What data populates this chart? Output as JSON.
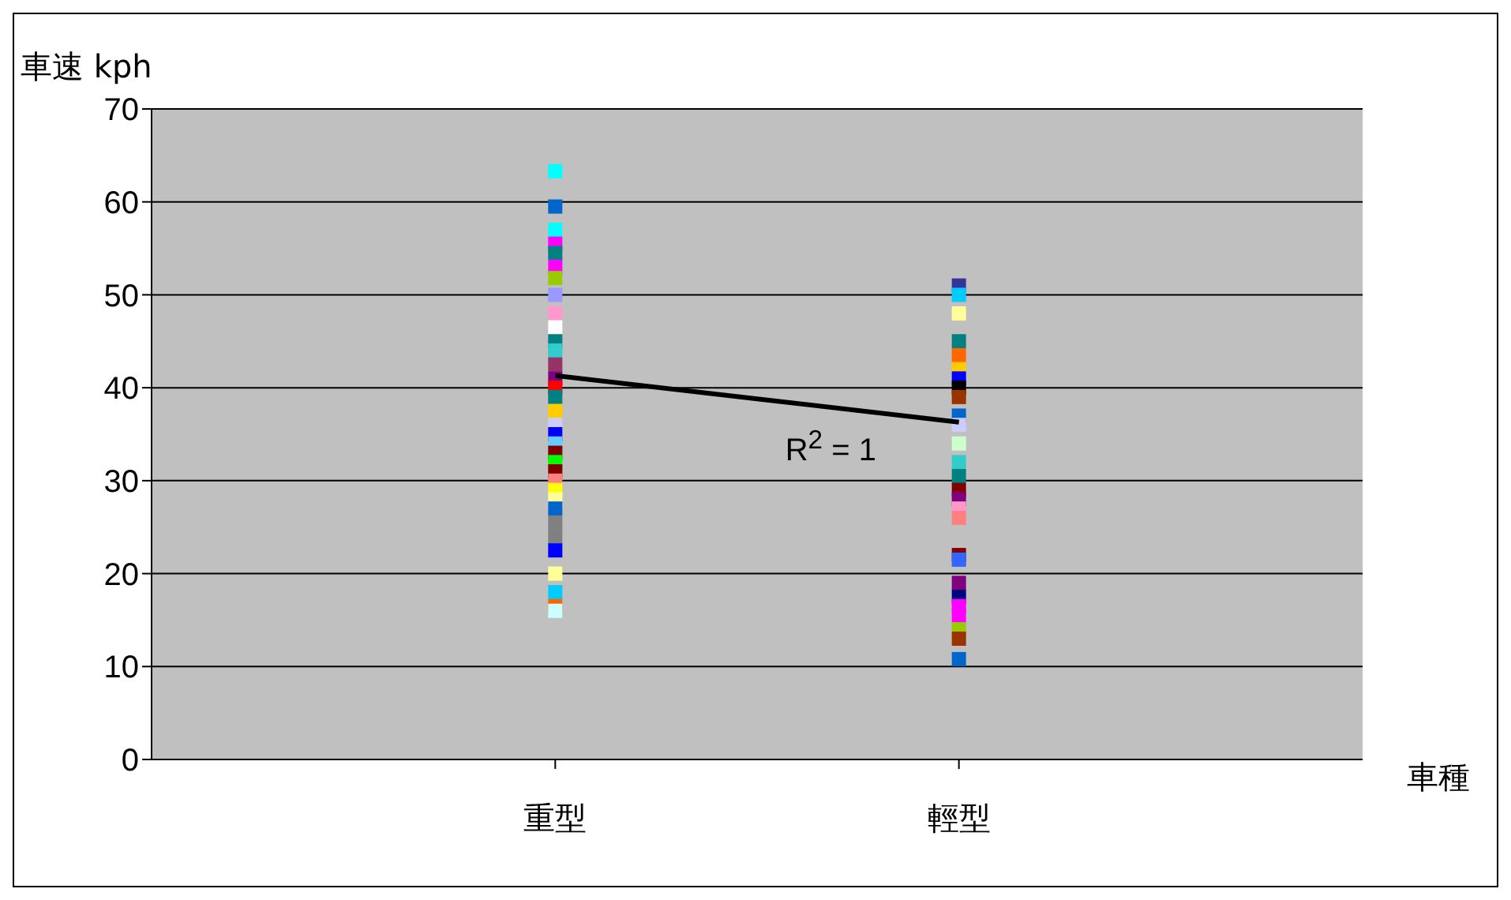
{
  "chart_data": {
    "type": "scatter",
    "ylabel": "車速 kph",
    "xlabel": "車種",
    "categories": [
      "重型",
      "輕型"
    ],
    "series": [
      {
        "x": [
          "重型",
          "重型",
          "重型",
          "重型",
          "重型",
          "重型",
          "重型",
          "重型",
          "重型",
          "重型",
          "重型",
          "重型",
          "重型",
          "重型",
          "重型",
          "重型",
          "重型",
          "重型",
          "重型",
          "重型",
          "重型",
          "重型",
          "重型",
          "重型",
          "重型",
          "重型",
          "重型",
          "重型",
          "重型",
          "重型",
          "重型",
          "重型",
          "重型",
          "重型"
        ],
        "values": [
          63.3,
          59.5,
          57,
          55.5,
          54.5,
          53,
          51.8,
          50,
          48,
          46.5,
          45,
          44,
          42.5,
          41,
          40,
          39,
          37.5,
          36,
          35,
          34,
          33,
          32,
          31,
          30,
          29,
          28,
          27,
          25.5,
          24,
          22.5,
          20,
          18,
          16.5,
          16
        ],
        "colors": [
          "#00ffff",
          "#0066cc",
          "#00ffff",
          "#ff00ff",
          "#008080",
          "#ff00ff",
          "#99cc00",
          "#9999ff",
          "#ff99cc",
          "#ffffff",
          "#008080",
          "#33cccc",
          "#993366",
          "#800080",
          "#ff0000",
          "#008080",
          "#ffcc00",
          "#ccccff",
          "#0000ff",
          "#66ccff",
          "#800000",
          "#00ff00",
          "#800000",
          "#ff8080",
          "#ffff00",
          "#ffff99",
          "#0066cc",
          "#808080",
          "#808080",
          "#0000ff",
          "#ffff99",
          "#00ccff",
          "#ff6600",
          "#ccffff"
        ]
      },
      {
        "x": [
          "輕型",
          "輕型",
          "輕型",
          "輕型",
          "輕型",
          "輕型",
          "輕型",
          "輕型",
          "輕型",
          "輕型",
          "輕型",
          "輕型",
          "輕型",
          "輕型",
          "輕型",
          "輕型",
          "輕型",
          "輕型",
          "輕型",
          "輕型",
          "輕型",
          "輕型",
          "輕型",
          "輕型",
          "輕型",
          "輕型",
          "輕型"
        ],
        "values": [
          51,
          50,
          48,
          45,
          43.5,
          42,
          41,
          40,
          39,
          37,
          36,
          34,
          32,
          30.5,
          29,
          28,
          27,
          26,
          22,
          21.5,
          19,
          17.5,
          16.5,
          15.5,
          14,
          13,
          10.8
        ],
        "colors": [
          "#333399",
          "#00ccff",
          "#ffff99",
          "#008080",
          "#ff6600",
          "#ffcc00",
          "#0000ff",
          "#000000",
          "#993300",
          "#0066cc",
          "#ccccff",
          "#ccffcc",
          "#33cccc",
          "#008080",
          "#800000",
          "#800080",
          "#ff99cc",
          "#ff8080",
          "#800000",
          "#3366ff",
          "#800080",
          "#000080",
          "#ff00ff",
          "#ff00ff",
          "#99cc00",
          "#993300",
          "#0066cc"
        ]
      },
      {
        "type": "line",
        "marker": "none",
        "color": "#000000",
        "x": [
          "重型",
          "輕型"
        ],
        "values": [
          41.3,
          36.3
        ]
      }
    ],
    "annotations": [
      {
        "text": "R$^{2}$ = 1",
        "x": "輕型",
        "y": 36.3
      }
    ],
    "ylim": [
      0,
      70
    ],
    "yticks": [
      0,
      10,
      20,
      30,
      40,
      50,
      60,
      70
    ],
    "grid": "y",
    "marker": "square"
  }
}
